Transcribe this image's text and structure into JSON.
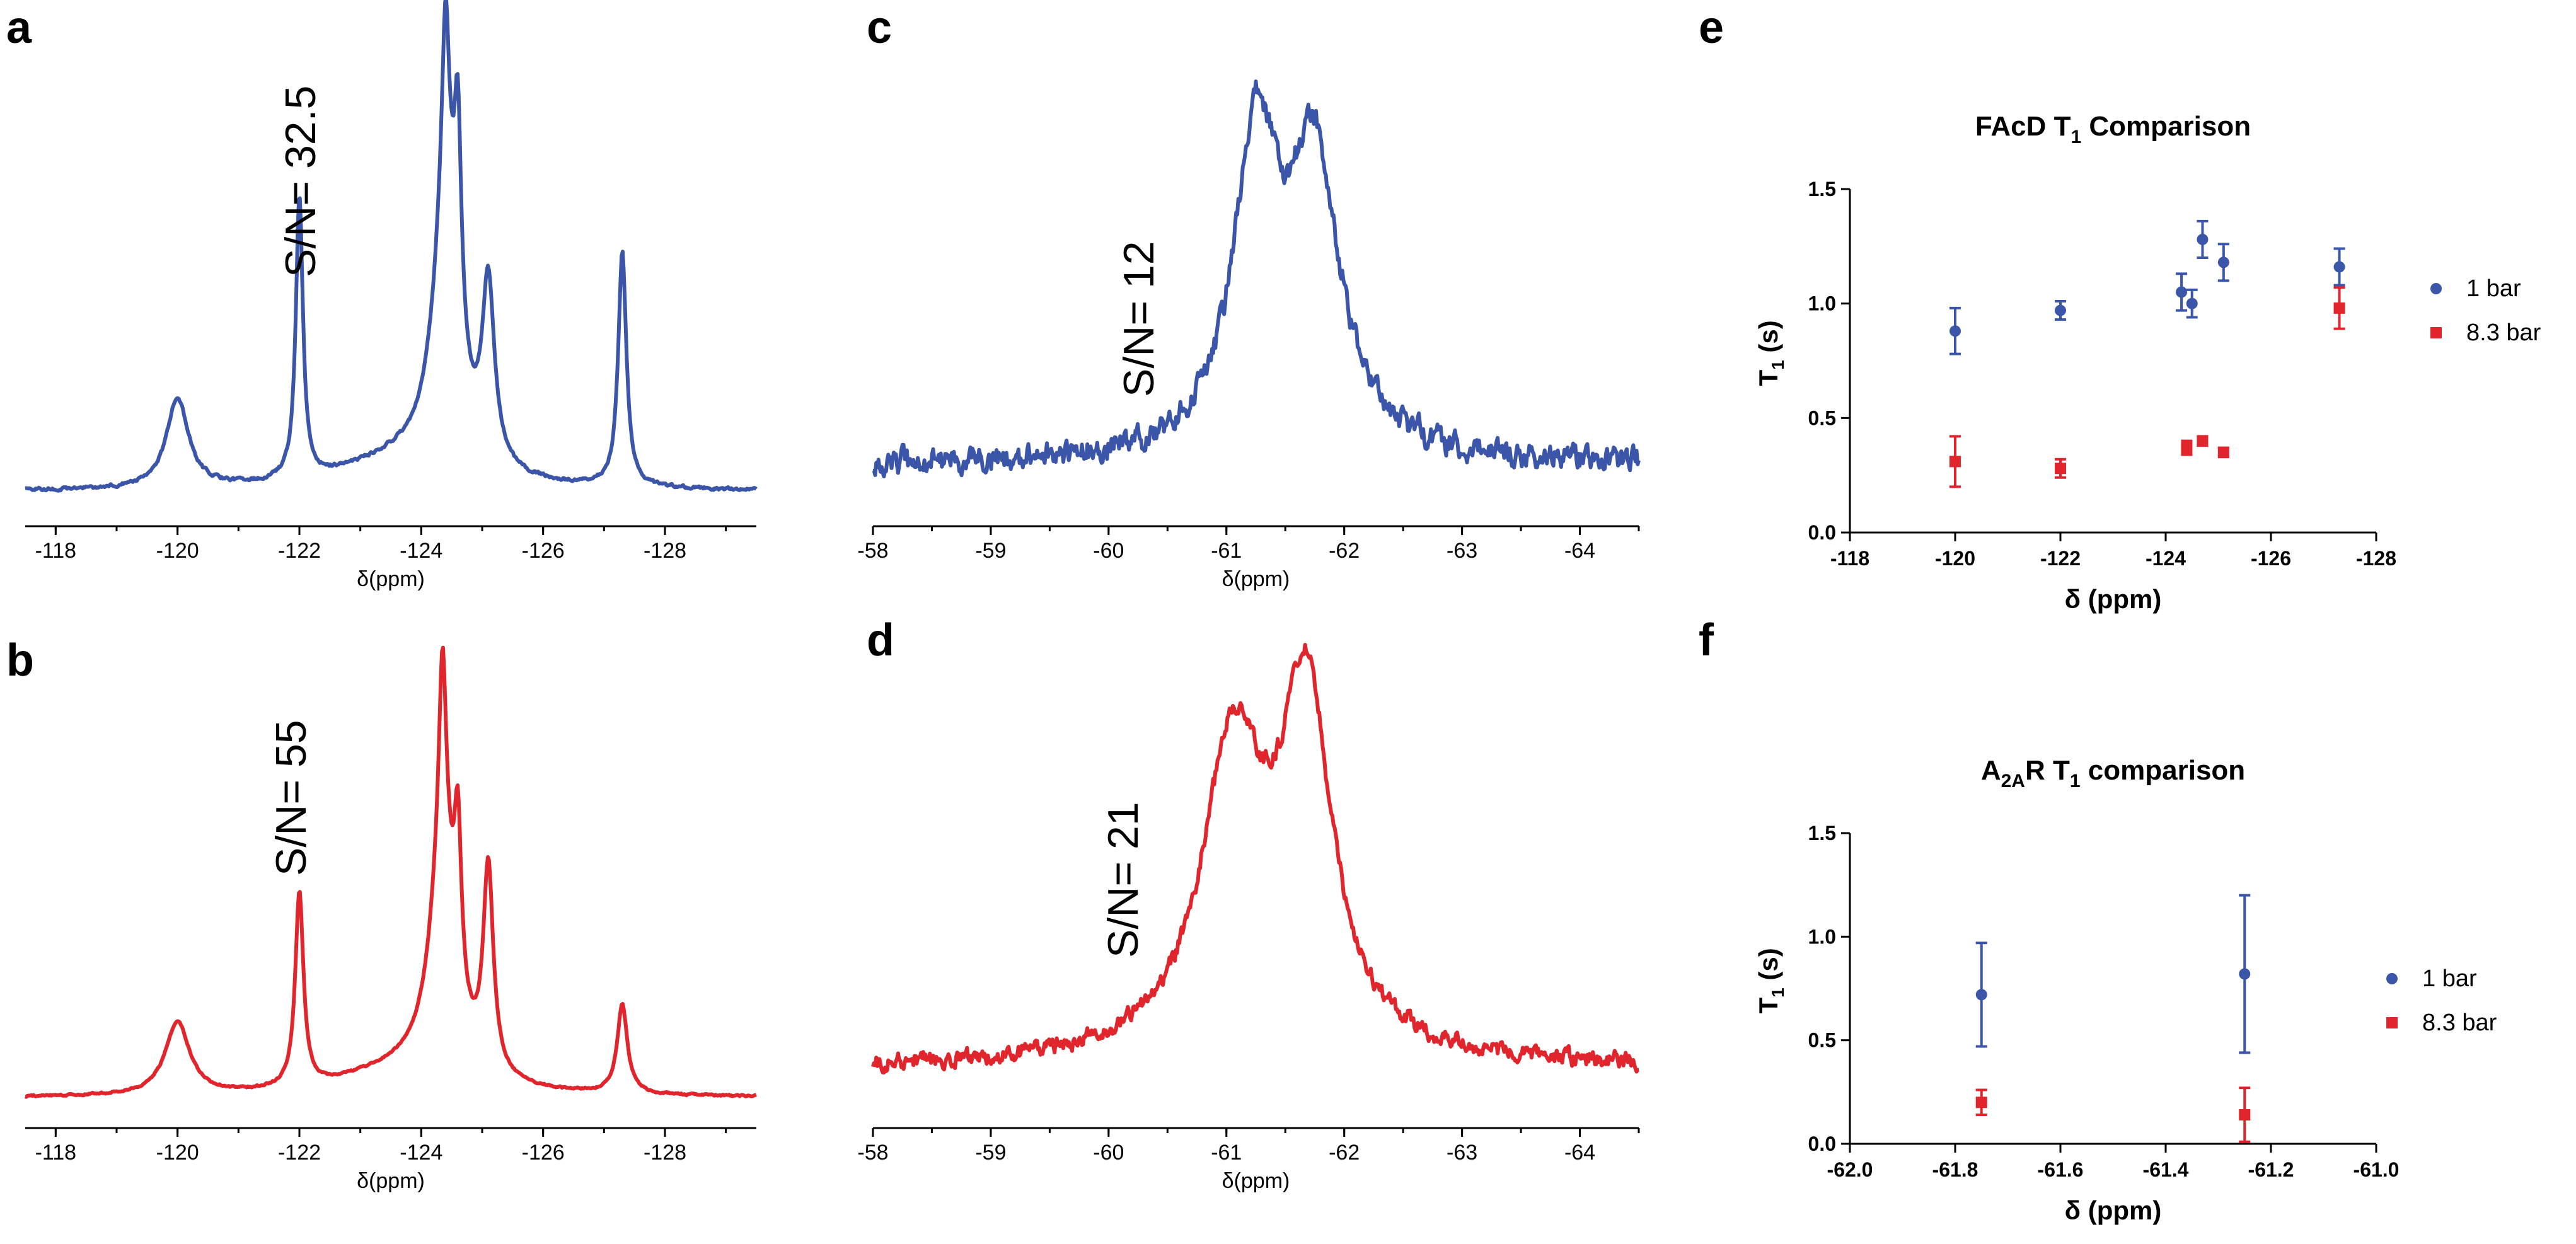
{
  "colors": {
    "blue": "#3b55a8",
    "red": "#e0252c",
    "black": "#000000"
  },
  "chart_data": [
    {
      "id": "a",
      "type": "line",
      "panel_label": "a",
      "annotation": "S/N= 32.5",
      "xlabel": "δ(ppm)",
      "xlim": [
        -117.5,
        -129.5
      ],
      "ylim": [
        0,
        1
      ],
      "ticks": [
        {
          "v": -118,
          "label": "-118"
        },
        {
          "v": -120,
          "label": "-120"
        },
        {
          "v": -122,
          "label": "-122"
        },
        {
          "v": -124,
          "label": "-124"
        },
        {
          "v": -126,
          "label": "-126"
        },
        {
          "v": -128,
          "label": "-128"
        }
      ],
      "color": "#3b55a8",
      "baseline": 0.02,
      "noise": 0.006,
      "peaks": [
        {
          "x": -120.0,
          "h": 0.19,
          "w": 0.22
        },
        {
          "x": -122.0,
          "h": 0.6,
          "w": 0.07
        },
        {
          "x": -123.6,
          "h": 0.06,
          "w": 1.2
        },
        {
          "x": -124.4,
          "h": 0.55,
          "w": 0.25
        },
        {
          "x": -124.4,
          "h": 0.4,
          "w": 0.07
        },
        {
          "x": -124.6,
          "h": 0.45,
          "w": 0.07
        },
        {
          "x": -125.1,
          "h": 0.38,
          "w": 0.12
        },
        {
          "x": -127.3,
          "h": 0.5,
          "w": 0.08
        }
      ]
    },
    {
      "id": "b",
      "type": "line",
      "panel_label": "b",
      "annotation": "S/N= 55",
      "xlabel": "δ(ppm)",
      "xlim": [
        -117.5,
        -129.5
      ],
      "ylim": [
        0,
        1
      ],
      "ticks": [
        {
          "v": -118,
          "label": "-118"
        },
        {
          "v": -120,
          "label": "-120"
        },
        {
          "v": -122,
          "label": "-122"
        },
        {
          "v": -124,
          "label": "-124"
        },
        {
          "v": -126,
          "label": "-126"
        },
        {
          "v": -128,
          "label": "-128"
        }
      ],
      "color": "#e0252c",
      "baseline": 0.02,
      "noise": 0.004,
      "peaks": [
        {
          "x": -120.0,
          "h": 0.18,
          "w": 0.24
        },
        {
          "x": -122.0,
          "h": 0.48,
          "w": 0.08
        },
        {
          "x": -123.6,
          "h": 0.06,
          "w": 1.2
        },
        {
          "x": -124.35,
          "h": 0.55,
          "w": 0.25
        },
        {
          "x": -124.35,
          "h": 0.48,
          "w": 0.07
        },
        {
          "x": -124.6,
          "h": 0.4,
          "w": 0.07
        },
        {
          "x": -125.1,
          "h": 0.5,
          "w": 0.1
        },
        {
          "x": -127.3,
          "h": 0.22,
          "w": 0.1
        }
      ]
    },
    {
      "id": "c",
      "type": "line",
      "panel_label": "c",
      "annotation": "S/N= 12",
      "xlabel": "δ(ppm)",
      "xlim": [
        -58,
        -64.5
      ],
      "ylim": [
        0,
        1
      ],
      "ticks": [
        {
          "v": -58,
          "label": "-58"
        },
        {
          "v": -59,
          "label": "-59"
        },
        {
          "v": -60,
          "label": "-60"
        },
        {
          "v": -61,
          "label": "-61"
        },
        {
          "v": -62,
          "label": "-62"
        },
        {
          "v": -63,
          "label": "-63"
        },
        {
          "v": -64,
          "label": "-64"
        }
      ],
      "color": "#3b55a8",
      "baseline": 0.1,
      "noise": 0.06,
      "peaks": [
        {
          "x": -61.25,
          "h": 0.75,
          "w": 0.22
        },
        {
          "x": -61.75,
          "h": 0.7,
          "w": 0.25
        },
        {
          "x": -61.5,
          "h": 0.08,
          "w": 0.6
        }
      ]
    },
    {
      "id": "d",
      "type": "line",
      "panel_label": "d",
      "annotation": "S/N= 21",
      "xlabel": "δ(ppm)",
      "xlim": [
        -58,
        -64.5
      ],
      "ylim": [
        0,
        1
      ],
      "ticks": [
        {
          "v": -58,
          "label": "-58"
        },
        {
          "v": -59,
          "label": "-59"
        },
        {
          "v": -60,
          "label": "-60"
        },
        {
          "v": -61,
          "label": "-61"
        },
        {
          "v": -62,
          "label": "-62"
        },
        {
          "v": -63,
          "label": "-63"
        },
        {
          "v": -64,
          "label": "-64"
        }
      ],
      "color": "#e0252c",
      "baseline": 0.12,
      "noise": 0.035,
      "peaks": [
        {
          "x": -61.05,
          "h": 0.6,
          "w": 0.3
        },
        {
          "x": -61.68,
          "h": 0.74,
          "w": 0.25
        },
        {
          "x": -61.3,
          "h": 0.12,
          "w": 0.7
        }
      ]
    },
    {
      "id": "e",
      "type": "scatter",
      "panel_label": "e",
      "title_main": "FAcD T",
      "title_sub": "1",
      "title_rest": " Comparison",
      "xlabel": "δ (ppm)",
      "ylabel_main": "T",
      "ylabel_sub": "1",
      "ylabel_rest": " (s)",
      "xlim": [
        -118,
        -128
      ],
      "ylim": [
        0.0,
        1.5
      ],
      "xticks": [
        {
          "v": -118,
          "label": "-118"
        },
        {
          "v": -120,
          "label": "-120"
        },
        {
          "v": -122,
          "label": "-122"
        },
        {
          "v": -124,
          "label": "-124"
        },
        {
          "v": -126,
          "label": "-126"
        },
        {
          "v": -128,
          "label": "-128"
        }
      ],
      "yticks": [
        {
          "v": 0.0,
          "label": "0.0"
        },
        {
          "v": 0.5,
          "label": "0.5"
        },
        {
          "v": 1.0,
          "label": "1.0"
        },
        {
          "v": 1.5,
          "label": "1.5"
        }
      ],
      "series": [
        {
          "name": "1 bar",
          "marker": "circle",
          "color": "#3b55a8",
          "points": [
            {
              "x": -120.0,
              "y": 0.88,
              "err": 0.1
            },
            {
              "x": -122.0,
              "y": 0.97,
              "err": 0.04
            },
            {
              "x": -124.3,
              "y": 1.05,
              "err": 0.08
            },
            {
              "x": -124.5,
              "y": 1.0,
              "err": 0.06
            },
            {
              "x": -124.7,
              "y": 1.28,
              "err": 0.08
            },
            {
              "x": -125.1,
              "y": 1.18,
              "err": 0.08
            },
            {
              "x": -127.3,
              "y": 1.16,
              "err": 0.08
            }
          ]
        },
        {
          "name": "8.3 bar",
          "marker": "square",
          "color": "#e0252c",
          "points": [
            {
              "x": -120.0,
              "y": 0.31,
              "err": 0.11
            },
            {
              "x": -122.0,
              "y": 0.28,
              "err": 0.04
            },
            {
              "x": -124.4,
              "y": 0.37,
              "err": 0.03
            },
            {
              "x": -124.7,
              "y": 0.4,
              "err": 0.02
            },
            {
              "x": -125.1,
              "y": 0.35,
              "err": 0.02
            },
            {
              "x": -127.3,
              "y": 0.98,
              "err": 0.09
            }
          ]
        }
      ],
      "legend_position": "right"
    },
    {
      "id": "f",
      "type": "scatter",
      "panel_label": "f",
      "title_main": "A",
      "title_sub": "2A",
      "title_rest": "R T",
      "title_sub2": "1",
      "title_rest2": " comparison",
      "xlabel": "δ (ppm)",
      "ylabel_main": "T",
      "ylabel_sub": "1",
      "ylabel_rest": " (s)",
      "xlim": [
        -62.0,
        -61.0
      ],
      "ylim": [
        0.0,
        1.5
      ],
      "xticks": [
        {
          "v": -62.0,
          "label": "-62.0"
        },
        {
          "v": -61.8,
          "label": "-61.8"
        },
        {
          "v": -61.6,
          "label": "-61.6"
        },
        {
          "v": -61.4,
          "label": "-61.4"
        },
        {
          "v": -61.2,
          "label": "-61.2"
        },
        {
          "v": -61.0,
          "label": "-61.0"
        }
      ],
      "yticks": [
        {
          "v": 0.0,
          "label": "0.0"
        },
        {
          "v": 0.5,
          "label": "0.5"
        },
        {
          "v": 1.0,
          "label": "1.0"
        },
        {
          "v": 1.5,
          "label": "1.5"
        }
      ],
      "series": [
        {
          "name": "1 bar",
          "marker": "circle",
          "color": "#3b55a8",
          "points": [
            {
              "x": -61.75,
              "y": 0.72,
              "err": 0.25
            },
            {
              "x": -61.25,
              "y": 0.82,
              "err": 0.38
            }
          ]
        },
        {
          "name": "8.3 bar",
          "marker": "square",
          "color": "#e0252c",
          "points": [
            {
              "x": -61.75,
              "y": 0.2,
              "err": 0.06
            },
            {
              "x": -61.25,
              "y": 0.14,
              "err": 0.13
            }
          ]
        }
      ],
      "legend_position": "right"
    }
  ]
}
